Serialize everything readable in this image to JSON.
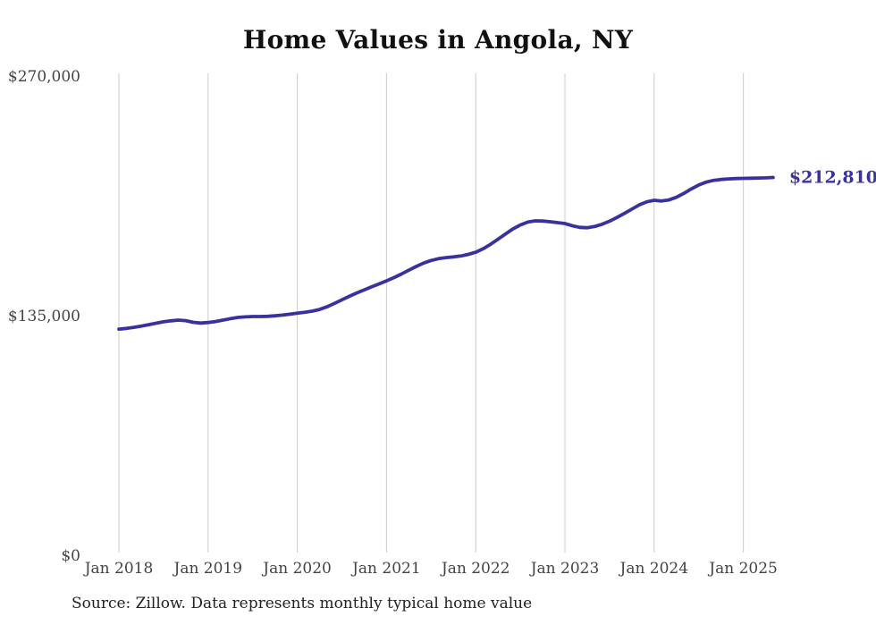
{
  "chart": {
    "title": "Home Values in Angola, NY",
    "source_note": "Source: Zillow. Data represents monthly typical home value",
    "end_label": "$212,810"
  },
  "chart_data": {
    "type": "line",
    "title": "Home Values in Angola, NY",
    "xlabel": "",
    "ylabel": "",
    "ylim": [
      0,
      270000
    ],
    "grid": "vertical-only",
    "legend": "none",
    "x_tick_labels": [
      "Jan 2018",
      "Jan 2019",
      "Jan 2020",
      "Jan 2021",
      "Jan 2022",
      "Jan 2023",
      "Jan 2024",
      "Jan 2025"
    ],
    "y_tick_labels": [
      "$0",
      "$135,000",
      "$270,000"
    ],
    "y_tick_values": [
      0,
      135000,
      270000
    ],
    "last_value_label": "$212,810",
    "source_note": "Source: Zillow. Data represents monthly typical home value",
    "colors": {
      "line": "#39329e",
      "grid": "#cccccc",
      "axis_text": "#444444",
      "title_text": "#111111",
      "source_text": "#222222",
      "background": "#ffffff"
    },
    "series": [
      {
        "name": "Typical home value",
        "frequency": "monthly",
        "start_month": "2018-01",
        "end_month": "2025-05",
        "months": [
          "2018-01",
          "2018-02",
          "2018-03",
          "2018-04",
          "2018-05",
          "2018-06",
          "2018-07",
          "2018-08",
          "2018-09",
          "2018-10",
          "2018-11",
          "2018-12",
          "2019-01",
          "2019-02",
          "2019-03",
          "2019-04",
          "2019-05",
          "2019-06",
          "2019-07",
          "2019-08",
          "2019-09",
          "2019-10",
          "2019-11",
          "2019-12",
          "2020-01",
          "2020-02",
          "2020-03",
          "2020-04",
          "2020-05",
          "2020-06",
          "2020-07",
          "2020-08",
          "2020-09",
          "2020-10",
          "2020-11",
          "2020-12",
          "2021-01",
          "2021-02",
          "2021-03",
          "2021-04",
          "2021-05",
          "2021-06",
          "2021-07",
          "2021-08",
          "2021-09",
          "2021-10",
          "2021-11",
          "2021-12",
          "2022-01",
          "2022-02",
          "2022-03",
          "2022-04",
          "2022-05",
          "2022-06",
          "2022-07",
          "2022-08",
          "2022-09",
          "2022-10",
          "2022-11",
          "2022-12",
          "2023-01",
          "2023-02",
          "2023-03",
          "2023-04",
          "2023-05",
          "2023-06",
          "2023-07",
          "2023-08",
          "2023-09",
          "2023-10",
          "2023-11",
          "2023-12",
          "2024-01",
          "2024-02",
          "2024-03",
          "2024-04",
          "2024-05",
          "2024-06",
          "2024-07",
          "2024-08",
          "2024-09",
          "2024-10",
          "2024-11",
          "2024-12",
          "2025-01",
          "2025-02",
          "2025-03",
          "2025-04",
          "2025-05"
        ],
        "values": [
          127400,
          127800,
          128400,
          129100,
          129900,
          130700,
          131500,
          132100,
          132500,
          132200,
          131200,
          130800,
          131100,
          131700,
          132500,
          133300,
          134000,
          134300,
          134500,
          134500,
          134600,
          134900,
          135300,
          135800,
          136400,
          136900,
          137500,
          138500,
          140000,
          141900,
          143900,
          145900,
          147800,
          149500,
          151200,
          152900,
          154600,
          156400,
          158400,
          160600,
          162700,
          164600,
          166100,
          167100,
          167700,
          168100,
          168600,
          169500,
          170700,
          172700,
          175200,
          178000,
          181000,
          183800,
          186100,
          187700,
          188400,
          188300,
          187900,
          187400,
          186900,
          185600,
          184700,
          184500,
          185200,
          186500,
          188200,
          190300,
          192600,
          195000,
          197400,
          199100,
          200000,
          199600,
          200200,
          201700,
          203900,
          206400,
          208600,
          210200,
          211200,
          211700,
          212000,
          212200,
          212300,
          212400,
          212500,
          212600,
          212810
        ]
      }
    ]
  }
}
